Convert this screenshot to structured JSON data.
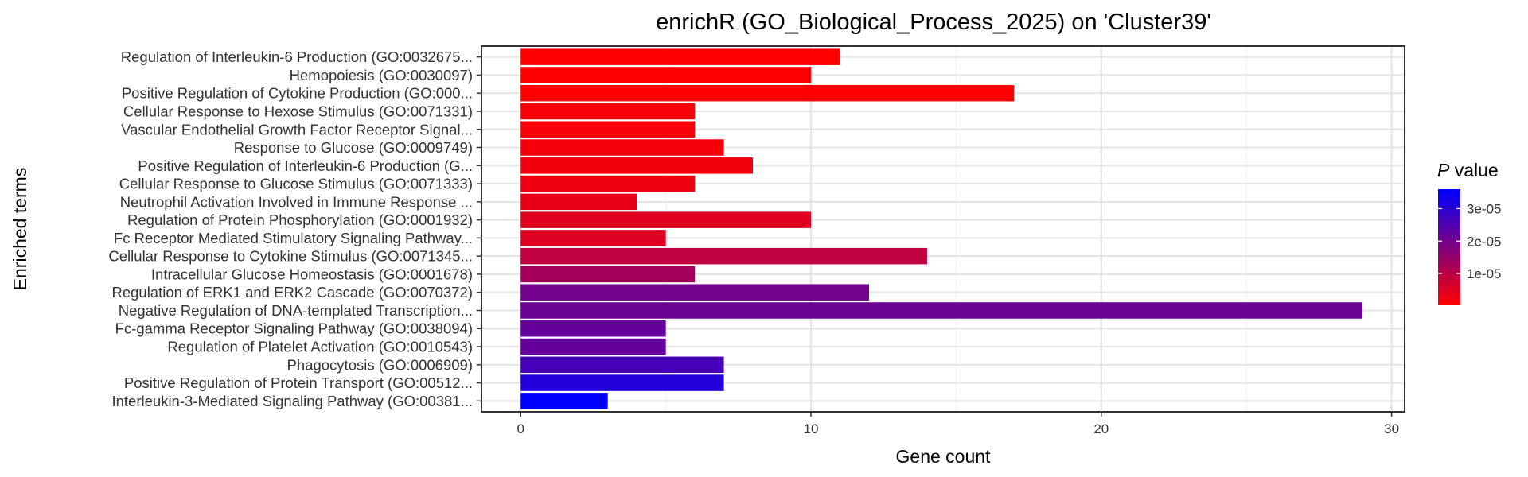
{
  "chart_data": {
    "type": "bar",
    "orientation": "horizontal",
    "title": "enrichR (GO_Biological_Process_2025) on 'Cluster39'",
    "xlabel": "Gene count",
    "ylabel": "Enriched terms",
    "xlim": [
      -1.35,
      30.45
    ],
    "xticks": [
      0,
      10,
      20,
      30
    ],
    "xtick_labels": [
      "0",
      "10",
      "20",
      "30"
    ],
    "grid": true,
    "legend": {
      "title_italic": "P",
      "title_rest": " value",
      "placement": "right",
      "type": "colorbar",
      "ticks": [
        1e-05,
        2e-05,
        3e-05
      ],
      "tick_labels": [
        "1e-05",
        "2e-05",
        "3e-05"
      ],
      "range": [
        2e-07,
        3.6e-05
      ],
      "low_color": "#ff0000",
      "high_color": "#0000ff"
    },
    "bars": [
      {
        "term": "Regulation of Interleukin-6 Production (GO:0032675...",
        "count": 11,
        "pvalue": 2e-07
      },
      {
        "term": "Hemopoiesis (GO:0030097)",
        "count": 10,
        "pvalue": 3e-07
      },
      {
        "term": "Positive Regulation of Cytokine Production (GO:000...",
        "count": 17,
        "pvalue": 5e-07
      },
      {
        "term": "Cellular Response to Hexose Stimulus (GO:0071331)",
        "count": 6,
        "pvalue": 1.2e-06
      },
      {
        "term": "Vascular Endothelial Growth Factor Receptor Signal...",
        "count": 6,
        "pvalue": 1.3e-06
      },
      {
        "term": "Response to Glucose (GO:0009749)",
        "count": 7,
        "pvalue": 1.6e-06
      },
      {
        "term": "Positive Regulation of Interleukin-6 Production (G...",
        "count": 8,
        "pvalue": 2e-06
      },
      {
        "term": "Cellular Response to Glucose Stimulus (GO:0071333)",
        "count": 6,
        "pvalue": 2.5e-06
      },
      {
        "term": "Neutrophil Activation Involved in Immune Response ...",
        "count": 4,
        "pvalue": 3.5e-06
      },
      {
        "term": "Regulation of Protein Phosphorylation (GO:0001932)",
        "count": 10,
        "pvalue": 4.5e-06
      },
      {
        "term": "Fc Receptor Mediated Stimulatory Signaling Pathway...",
        "count": 5,
        "pvalue": 5e-06
      },
      {
        "term": "Cellular Response to Cytokine Stimulus (GO:0071345...",
        "count": 14,
        "pvalue": 9e-06
      },
      {
        "term": "Intracellular Glucose Homeostasis (GO:0001678)",
        "count": 6,
        "pvalue": 1.3e-05
      },
      {
        "term": "Regulation of ERK1 and ERK2 Cascade (GO:0070372)",
        "count": 12,
        "pvalue": 2e-05
      },
      {
        "term": "Negative Regulation of DNA-templated Transcription...",
        "count": 29,
        "pvalue": 2.1e-05
      },
      {
        "term": "Fc-gamma Receptor Signaling Pathway (GO:0038094)",
        "count": 5,
        "pvalue": 2.2e-05
      },
      {
        "term": "Regulation of Platelet Activation (GO:0010543)",
        "count": 5,
        "pvalue": 2.2e-05
      },
      {
        "term": "Phagocytosis (GO:0006909)",
        "count": 7,
        "pvalue": 2.6e-05
      },
      {
        "term": "Positive Regulation of Protein Transport (GO:00512...",
        "count": 7,
        "pvalue": 3.1e-05
      },
      {
        "term": "Interleukin-3-Mediated Signaling Pathway (GO:00381...",
        "count": 3,
        "pvalue": 3.6e-05
      }
    ]
  }
}
